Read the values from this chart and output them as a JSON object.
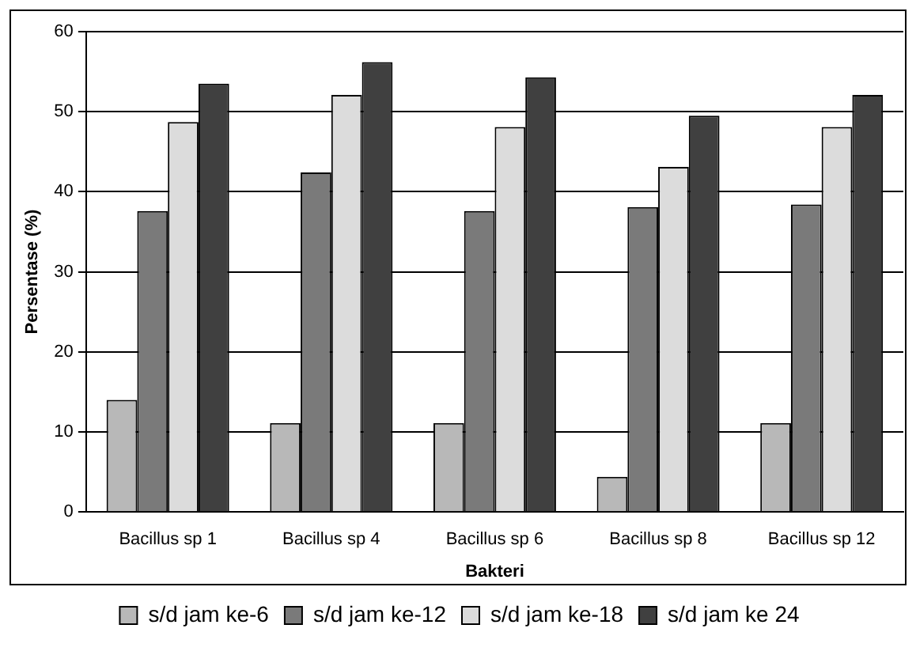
{
  "chart_data": {
    "type": "bar",
    "xlabel": "Bakteri",
    "ylabel": "Persentase (%)",
    "categories": [
      "Bacillus sp 1",
      "Bacillus sp 4",
      "Bacillus sp 6",
      "Bacillus sp 8",
      "Bacillus sp 12"
    ],
    "series": [
      {
        "name": "s/d jam ke-6",
        "color": "#b8b8b8",
        "values": [
          14.0,
          11.1,
          11.1,
          4.4,
          11.1
        ]
      },
      {
        "name": "s/d jam ke-12",
        "color": "#7a7a7a",
        "values": [
          37.6,
          42.4,
          37.6,
          38.1,
          38.4
        ]
      },
      {
        "name": "s/d jam ke-18",
        "color": "#dcdcdc",
        "values": [
          48.7,
          52.1,
          48.1,
          43.1,
          48.1
        ]
      },
      {
        "name": "s/d jam ke 24",
        "color": "#404040",
        "values": [
          53.5,
          56.2,
          54.3,
          49.5,
          52.1
        ]
      }
    ],
    "ylim": [
      0,
      60
    ],
    "yticks": [
      0,
      10,
      20,
      30,
      40,
      50,
      60
    ],
    "grid": "y",
    "legend": "bottom"
  }
}
